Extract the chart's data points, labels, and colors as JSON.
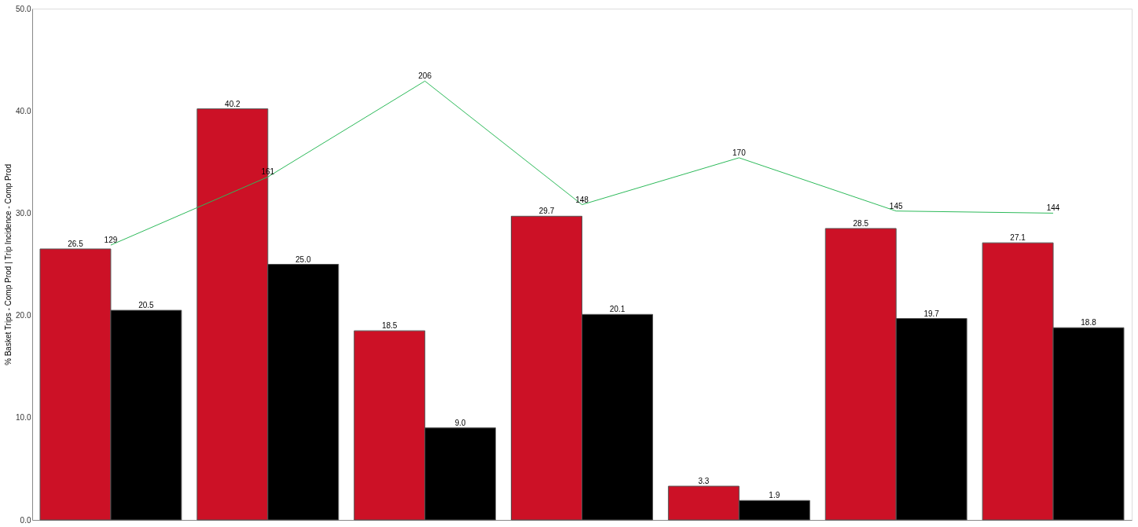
{
  "chart_data": {
    "type": "bar",
    "ylabel": "% Basket Trips - Comp Prod | Trip Incidence - Comp Prod",
    "categories": [
      null,
      null,
      null,
      null,
      null,
      null,
      null
    ],
    "series": [
      {
        "color": "#cc1126",
        "values": [
          26.5,
          40.2,
          18.5,
          29.7,
          3.3,
          28.5,
          27.1
        ],
        "value_labels": [
          "26.5",
          "40.2",
          "18.5",
          "29.7",
          "3.3",
          "28.5",
          "27.1"
        ]
      },
      {
        "color": "#000000",
        "values": [
          20.5,
          25.0,
          9.0,
          20.1,
          1.9,
          19.7,
          18.8
        ],
        "value_labels": [
          "20.5",
          "25.0",
          "9.0",
          "20.1",
          "1.9",
          "19.7",
          "18.8"
        ]
      },
      {
        "type": "line",
        "axis": "y2",
        "color": "#2dba5a",
        "values": [
          129,
          161,
          206,
          148,
          170,
          145,
          144
        ],
        "value_labels": [
          "129",
          "161",
          "206",
          "148",
          "170",
          "145",
          "144"
        ]
      }
    ],
    "ylim": [
      0,
      50
    ],
    "yticks": [
      {
        "value": 0,
        "label": "0.0"
      },
      {
        "value": 10,
        "label": "10.0"
      },
      {
        "value": 20,
        "label": "20.0"
      },
      {
        "value": 30,
        "label": "30.0"
      },
      {
        "value": 40,
        "label": "40.0"
      },
      {
        "value": 50,
        "label": "50.0"
      }
    ],
    "y2lim": [
      0,
      240
    ],
    "tick_labels": "y",
    "grid": false,
    "legend": false,
    "marker": "none",
    "line_style": "solid"
  }
}
